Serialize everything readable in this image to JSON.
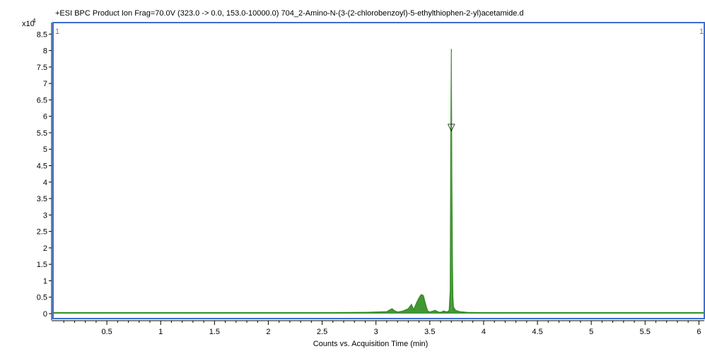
{
  "chart_data": {
    "type": "line",
    "title": "+ESI BPC Product Ion Frag=70.0V (323.0 -> 0.0, 153.0-10000.0) 704_2-Amino-N-(3-(2-chlorobenzoyl)-5-ethylthiophen-2-yl)acetamide.d",
    "xlabel": "Counts vs. Acquisition Time (min)",
    "y_multiplier_label": "x10",
    "y_multiplier_exp": "4",
    "panel_label_left": "1",
    "panel_label_right": "1",
    "xlim": [
      0.0,
      6.05
    ],
    "ylim": [
      -0.15,
      8.85
    ],
    "x_ticks": [
      0.5,
      1,
      1.5,
      2,
      2.5,
      3,
      3.5,
      4,
      4.5,
      5,
      5.5,
      6
    ],
    "x_tick_labels": [
      "0.5",
      "1",
      "1.5",
      "2",
      "2.5",
      "3",
      "3.5",
      "4",
      "4.5",
      "5",
      "5.5",
      "6"
    ],
    "y_ticks": [
      0,
      0.5,
      1,
      1.5,
      2,
      2.5,
      3,
      3.5,
      4,
      4.5,
      5,
      5.5,
      6,
      6.5,
      7,
      7.5,
      8,
      8.5
    ],
    "y_tick_labels": [
      "0",
      "0.5",
      "1",
      "1.5",
      "2",
      "2.5",
      "3",
      "3.5",
      "4",
      "4.5",
      "5",
      "5.5",
      "6",
      "6.5",
      "7",
      "7.5",
      "8",
      "8.5"
    ],
    "series": [
      {
        "color": "#2e8b1e",
        "x": [
          0.0,
          0.5,
          1.0,
          1.5,
          2.0,
          2.5,
          2.9,
          3.1,
          3.15,
          3.17,
          3.2,
          3.25,
          3.3,
          3.33,
          3.35,
          3.38,
          3.4,
          3.42,
          3.44,
          3.46,
          3.48,
          3.5,
          3.55,
          3.58,
          3.6,
          3.63,
          3.66,
          3.68,
          3.69,
          3.695,
          3.7,
          3.705,
          3.71,
          3.715,
          3.72,
          3.74,
          3.78,
          3.85,
          4.0,
          4.5,
          5.0,
          5.5,
          6.05
        ],
        "y": [
          0.03,
          0.03,
          0.03,
          0.03,
          0.03,
          0.03,
          0.04,
          0.06,
          0.15,
          0.09,
          0.05,
          0.08,
          0.15,
          0.28,
          0.12,
          0.35,
          0.48,
          0.58,
          0.55,
          0.3,
          0.08,
          0.05,
          0.1,
          0.05,
          0.04,
          0.08,
          0.05,
          0.1,
          0.7,
          5.4,
          8.05,
          4.2,
          1.6,
          0.5,
          0.2,
          0.1,
          0.06,
          0.04,
          0.03,
          0.03,
          0.03,
          0.03,
          0.03
        ]
      }
    ],
    "annotations": [
      {
        "type": "peak-marker",
        "x": 3.7,
        "y": 5.75,
        "symbol": "▽"
      }
    ]
  }
}
